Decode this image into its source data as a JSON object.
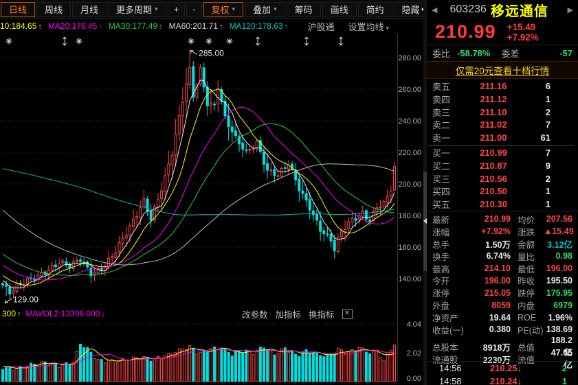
{
  "toolbar": {
    "items": [
      {
        "label": "日线",
        "name": "tab-daily",
        "style": "active"
      },
      {
        "label": "周线",
        "name": "tab-weekly"
      },
      {
        "label": "月线",
        "name": "tab-monthly"
      },
      {
        "label": "更多周期",
        "name": "more-periods",
        "arrow": true
      },
      {
        "label": "+",
        "name": "zoom-in",
        "compact": true
      },
      {
        "label": "-",
        "name": "zoom-out",
        "compact": true
      },
      {
        "label": "复权",
        "name": "adjust-dropdown",
        "style": "active",
        "arrow": true
      },
      {
        "label": "叠加",
        "name": "overlay-dropdown",
        "arrow": true
      },
      {
        "label": "筹码",
        "name": "chip-distribution"
      },
      {
        "label": "画线",
        "name": "draw-line"
      },
      {
        "label": "简约",
        "name": "simple-mode"
      },
      {
        "label": "隐藏",
        "name": "hide-panel",
        "suffix": "▸▸"
      }
    ]
  },
  "ma_row": {
    "items": [
      {
        "text": "10:184.65",
        "color": "#ffff00"
      },
      {
        "text": "MA20:176.45",
        "color": "#ff00ff"
      },
      {
        "text": "MA30:177.49",
        "color": "#2ecc40"
      },
      {
        "text": "MA60:201.71",
        "color": "#d8d8d8"
      },
      {
        "text": "MA120:178.63",
        "color": "#00c8c8"
      }
    ],
    "arrow": "↑",
    "tag": "沪股通",
    "set_ma": "设置均线"
  },
  "volume_header": {
    "items": [
      {
        "text": "300",
        "color": "#ffff00",
        "arrow": "↑"
      },
      {
        "text": "MAVOL2:13396.000",
        "color": "#ff00ff",
        "arrow": "↓"
      }
    ],
    "buttons": [
      "改参数",
      "加指标",
      "换指标"
    ]
  },
  "panel": {
    "code": "603236",
    "name": "移远通信",
    "price": "210.99",
    "change": "+15.49",
    "pct": "+7.92%",
    "weibi_label": "委比",
    "weibi": "-58.78%",
    "weicha_label": "委差",
    "weicha": "-57",
    "banner": "仅需20元查看十档行情",
    "asks": [
      {
        "label": "卖五",
        "price": "211.16",
        "qty": "6"
      },
      {
        "label": "卖四",
        "price": "211.12",
        "qty": "1"
      },
      {
        "label": "卖三",
        "price": "211.10",
        "qty": "2"
      },
      {
        "label": "卖二",
        "price": "211.02",
        "qty": "7"
      },
      {
        "label": "卖一",
        "price": "211.00",
        "qty": "61"
      }
    ],
    "bids": [
      {
        "label": "买一",
        "price": "210.99",
        "qty": "7"
      },
      {
        "label": "买二",
        "price": "210.87",
        "qty": "9"
      },
      {
        "label": "买三",
        "price": "210.56",
        "qty": "2"
      },
      {
        "label": "买四",
        "price": "210.50",
        "qty": "1"
      },
      {
        "label": "买五",
        "price": "210.30",
        "qty": "1"
      }
    ],
    "stats": [
      {
        "l1": "最新",
        "v1": "210.99",
        "c1": "red",
        "l2": "均价",
        "v2": "207.56",
        "c2": "red"
      },
      {
        "l1": "涨幅",
        "v1": "+7.92%",
        "c1": "red",
        "l2": "涨跌",
        "v2": "▲15.49",
        "c2": "red"
      },
      {
        "l1": "总手",
        "v1": "1.50万",
        "c1": "white",
        "l2": "金额",
        "v2": "3.12亿",
        "c2": "cyan"
      },
      {
        "l1": "换手",
        "v1": "6.74%",
        "c1": "white",
        "l2": "量比",
        "v2": "0.98",
        "c2": "green"
      },
      {
        "l1": "最高",
        "v1": "214.10",
        "c1": "red",
        "l2": "最低",
        "v2": "196.00",
        "c2": "red"
      },
      {
        "l1": "今开",
        "v1": "196.00",
        "c1": "red",
        "l2": "昨收",
        "v2": "195.50",
        "c2": "white"
      },
      {
        "l1": "涨停",
        "v1": "215.05",
        "c1": "red",
        "l2": "跌停",
        "v2": "175.95",
        "c2": "green"
      },
      {
        "l1": "外盘",
        "v1": "8059",
        "c1": "red",
        "l2": "内盘",
        "v2": "6979",
        "c2": "green"
      },
      {
        "l1": "净资产",
        "v1": "19.64",
        "c1": "white",
        "l2": "ROE",
        "v2": "1.96%",
        "c2": "white"
      },
      {
        "l1": "收益(一)",
        "v1": "0.380",
        "c1": "white",
        "l2": "PE(动)",
        "v2": "138.69",
        "c2": "white"
      },
      {
        "l1": "总股本",
        "v1": "8918万",
        "c1": "white",
        "l2": "总值",
        "v2": "188.2亿",
        "c2": "white"
      },
      {
        "l1": "流通股",
        "v1": "2230万",
        "c1": "white",
        "l2": "流值",
        "v2": "47.05亿",
        "c2": "white"
      }
    ],
    "ticks": [
      {
        "time": "14:56",
        "price": "210.25",
        "dir": "↓",
        "qty": "2"
      },
      {
        "time": "14:58",
        "price": "210.24",
        "dir": "↓",
        "qty": "1"
      }
    ]
  },
  "chart_data": {
    "type": "candlestick",
    "symbol": "603236 移远通信",
    "period": "日线",
    "price_axis_ticks": [
      280,
      260,
      240,
      220,
      200,
      180,
      160,
      140
    ],
    "volume_axis_ticks": [
      "4.04",
      "2.02",
      "0.00"
    ],
    "annotations": {
      "high": {
        "bar": 53,
        "price": 285.0,
        "label": "285.00"
      },
      "low": {
        "bar": 1,
        "price": 129.0,
        "label": "129.00"
      }
    },
    "event_markers": {
      "asterisk_x": [
        13,
        115,
        278,
        304,
        334
      ],
      "updown_x": [
        94,
        375,
        446,
        496
      ]
    },
    "bars": 112,
    "prev_close": 195.5,
    "last_bar": {
      "open": 196.0,
      "high": 214.1,
      "low": 196.0,
      "close": 210.99
    },
    "special_bars": {
      "1": {
        "low": 129.0
      },
      "53": {
        "high": 285.0
      }
    },
    "close_anchors": [
      [
        0,
        136
      ],
      [
        2,
        130.5
      ],
      [
        4,
        134
      ],
      [
        8,
        140
      ],
      [
        12,
        145
      ],
      [
        16,
        150
      ],
      [
        19,
        147
      ],
      [
        22,
        152
      ],
      [
        25,
        144
      ],
      [
        28,
        147
      ],
      [
        31,
        154
      ],
      [
        34,
        164
      ],
      [
        37,
        176
      ],
      [
        40,
        190
      ],
      [
        42,
        179
      ],
      [
        44,
        191
      ],
      [
        46,
        204
      ],
      [
        48,
        219
      ],
      [
        50,
        241
      ],
      [
        52,
        263
      ],
      [
        53,
        272
      ],
      [
        54,
        256
      ],
      [
        56,
        273
      ],
      [
        58,
        252
      ],
      [
        60,
        250
      ],
      [
        61,
        262
      ],
      [
        63,
        241
      ],
      [
        66,
        228
      ],
      [
        69,
        220
      ],
      [
        72,
        227
      ],
      [
        75,
        209
      ],
      [
        78,
        205
      ],
      [
        81,
        212
      ],
      [
        84,
        197
      ],
      [
        87,
        186
      ],
      [
        90,
        172
      ],
      [
        93,
        164
      ],
      [
        94,
        158
      ],
      [
        96,
        169
      ],
      [
        99,
        177
      ],
      [
        102,
        182
      ],
      [
        104,
        178
      ],
      [
        106,
        186
      ],
      [
        108,
        187
      ],
      [
        110,
        195.5
      ],
      [
        111,
        210.99
      ]
    ],
    "pre_close_anchors": [
      [
        -120,
        185
      ],
      [
        -95,
        235
      ],
      [
        -70,
        268
      ],
      [
        -55,
        240
      ],
      [
        -35,
        185
      ],
      [
        -15,
        155
      ],
      [
        -1,
        138
      ]
    ],
    "volume_anchors": [
      [
        0,
        0.85
      ],
      [
        4,
        0.7
      ],
      [
        8,
        1.0
      ],
      [
        12,
        1.15
      ],
      [
        16,
        0.95
      ],
      [
        20,
        1.15
      ],
      [
        22,
        2.45
      ],
      [
        24,
        2.1
      ],
      [
        27,
        1.3
      ],
      [
        31,
        1.25
      ],
      [
        35,
        1.35
      ],
      [
        39,
        1.5
      ],
      [
        43,
        1.4
      ],
      [
        47,
        1.7
      ],
      [
        50,
        2.0
      ],
      [
        53,
        2.25
      ],
      [
        56,
        1.8
      ],
      [
        59,
        2.1
      ],
      [
        62,
        2.2
      ],
      [
        65,
        1.7
      ],
      [
        68,
        2.0
      ],
      [
        71,
        1.85
      ],
      [
        74,
        2.25
      ],
      [
        77,
        1.7
      ],
      [
        80,
        2.15
      ],
      [
        83,
        1.65
      ],
      [
        86,
        1.95
      ],
      [
        89,
        1.75
      ],
      [
        92,
        1.55
      ],
      [
        95,
        2.05
      ],
      [
        98,
        1.85
      ],
      [
        101,
        2.2
      ],
      [
        104,
        1.8
      ],
      [
        106,
        2.0
      ],
      [
        108,
        1.2
      ],
      [
        110,
        2.15
      ],
      [
        111,
        2.3
      ]
    ],
    "ma_periods": [
      5,
      10,
      20,
      30,
      60,
      120
    ],
    "ma_colors": [
      "#e8e8e8",
      "#ffff00",
      "#ff00ff",
      "#2ecc40",
      "#bbbbbb",
      "#00b4b4"
    ],
    "mavol_periods": [
      5,
      10
    ],
    "mavol_colors": [
      "#ffff00",
      "#ff00ff"
    ],
    "colors": {
      "up": "#ff4545",
      "down": "#00e0e0",
      "grid": "#3c3c3c",
      "axis_text": "#b4b4b4"
    }
  }
}
